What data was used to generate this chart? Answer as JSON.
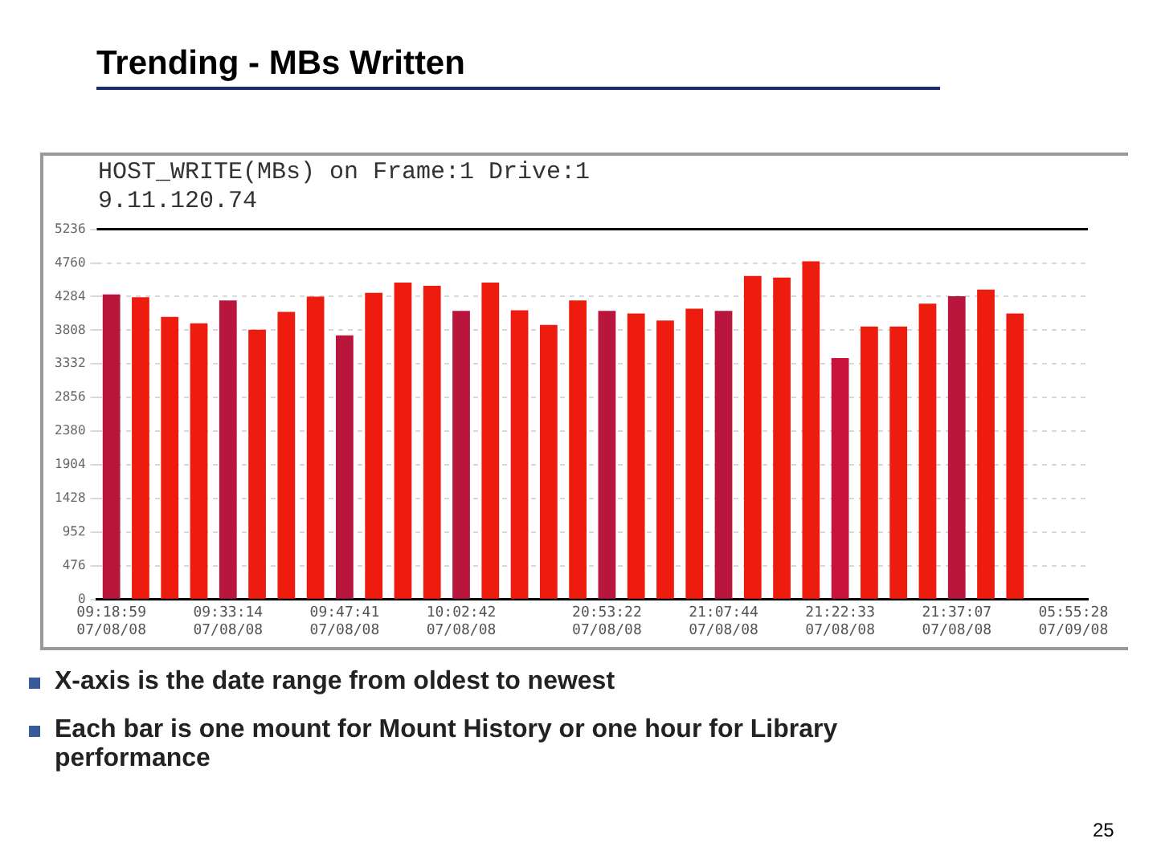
{
  "chart_data": {
    "type": "bar",
    "title": "Trending - MBs Written",
    "subtitle": "HOST_WRITE(MBs) on Frame:1 Drive:1\n9.11.120.74",
    "categories": [
      "09:18:59 07/08/08",
      null,
      null,
      null,
      "09:33:14 07/08/08",
      null,
      null,
      null,
      "09:47:41 07/08/08",
      null,
      null,
      null,
      "10:02:42 07/08/08",
      null,
      null,
      null,
      null,
      "20:53:22 07/08/08",
      null,
      null,
      null,
      "21:07:44 07/08/08",
      null,
      null,
      null,
      "21:22:33 07/08/08",
      null,
      null,
      null,
      "21:37:07 07/08/08",
      null,
      null,
      null,
      "05:55:28 07/09/08"
    ],
    "values": [
      4314,
      4275,
      3998,
      3906,
      4229,
      3814,
      4068,
      4283,
      3737,
      4337,
      4483,
      4437,
      4083,
      4483,
      4091,
      3883,
      4229,
      4083,
      4044,
      3945,
      4114,
      4083,
      4575,
      4552,
      4783,
      3414,
      3860,
      3860,
      4183,
      4290,
      4383,
      4044,
      null,
      null
    ],
    "colors": [
      "#b8163c",
      "#ee1c0e",
      "#ee1c0e",
      "#ee1c0e",
      "#b8163c",
      "#ee1c0e",
      "#ee1c0e",
      "#ee1c0e",
      "#b8163c",
      "#ee1c0e",
      "#ee1c0e",
      "#ee1c0e",
      "#b8163c",
      "#ee1c0e",
      "#ee1c0e",
      "#ee1c0e",
      "#ee1c0e",
      "#b8163c",
      "#ee1c0e",
      "#ee1c0e",
      "#ee1c0e",
      "#b8163c",
      "#ee1c0e",
      "#ee1c0e",
      "#ee1c0e",
      "#c8143a",
      "#ee1c0e",
      "#ee1c0e",
      "#ee1c0e",
      "#b8163c",
      "#ee1c0e",
      "#ee1c0e",
      "#ee1c0e",
      "#ee1c0e"
    ],
    "ylim": [
      0,
      5236
    ],
    "yticks": [
      0,
      476,
      952,
      1428,
      1904,
      2380,
      2856,
      3332,
      3808,
      4284,
      4760,
      5236
    ],
    "grid": "y",
    "annotations": [
      "X-axis is the date range from oldest to newest",
      "Each bar is one mount for Mount History or one hour for Library performance",
      "25"
    ]
  }
}
